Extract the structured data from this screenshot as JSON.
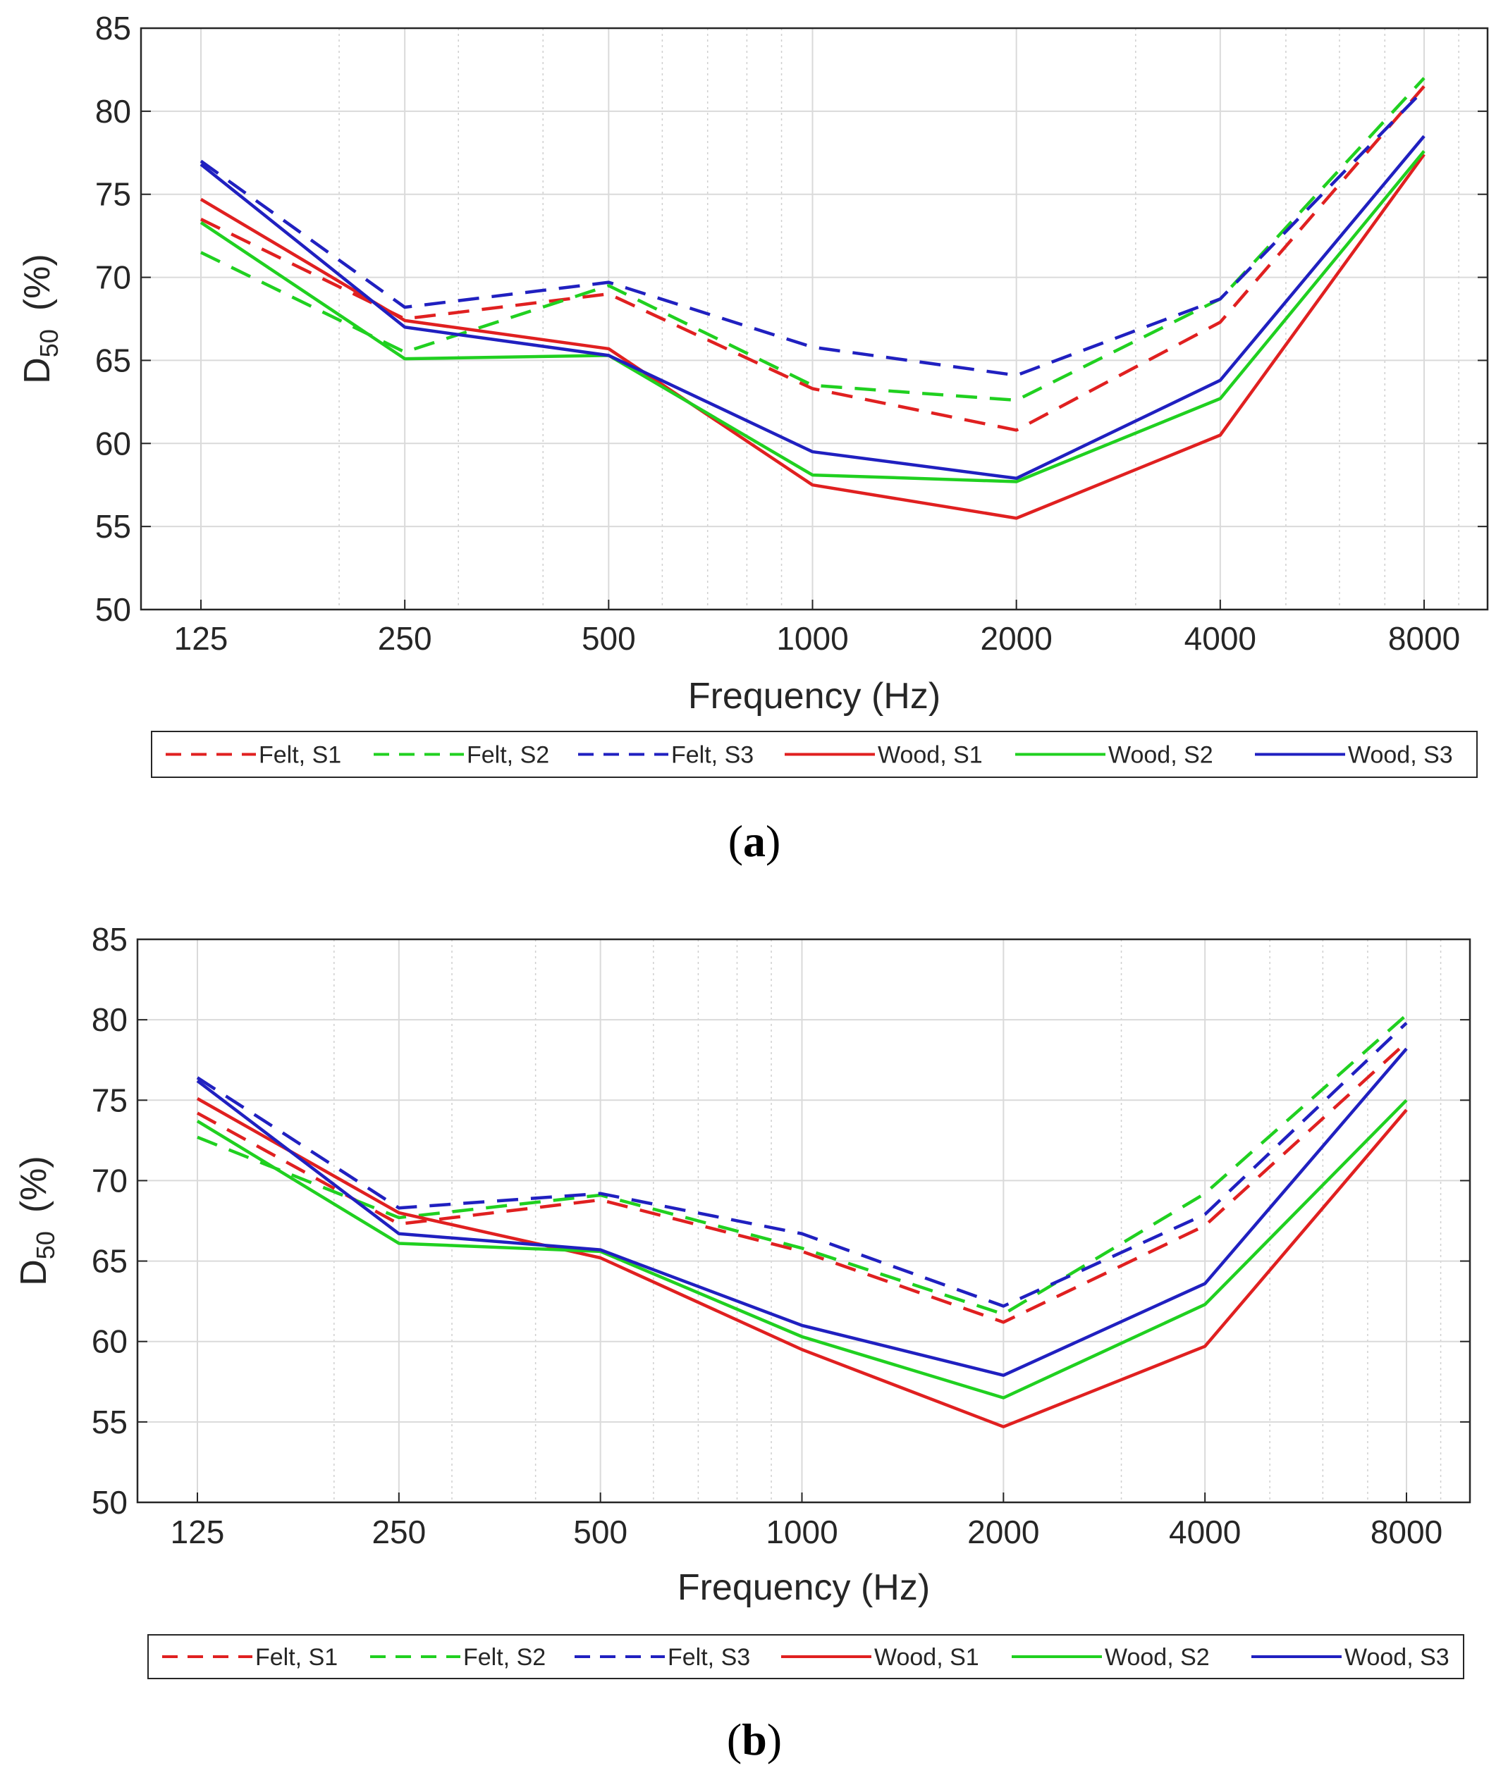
{
  "chart_data": [
    {
      "type": "line",
      "caption": "(a)",
      "xlabel": "Frequency (Hz)",
      "ylabel": "D",
      "ylabel_sub": "50",
      "ylabel_unit": "(%)",
      "x": [
        125,
        250,
        500,
        1000,
        2000,
        4000,
        8000
      ],
      "x_scale": "log2",
      "xtick_labels": [
        "125",
        "250",
        "500",
        "1000",
        "2000",
        "4000",
        "8000"
      ],
      "ylim": [
        50,
        85
      ],
      "yticks": [
        50,
        55,
        60,
        65,
        70,
        75,
        80,
        85
      ],
      "grid": true,
      "legend_position": "bottom",
      "series": [
        {
          "name": "Felt, S1",
          "color": "#e02020",
          "style": "dashed",
          "values": [
            73.5,
            67.5,
            69.0,
            63.3,
            60.8,
            67.3,
            81.5
          ]
        },
        {
          "name": "Felt, S2",
          "color": "#20d020",
          "style": "dashed",
          "values": [
            71.5,
            65.5,
            69.5,
            63.5,
            62.6,
            68.7,
            82.0
          ]
        },
        {
          "name": "Felt, S3",
          "color": "#2020c0",
          "style": "dashed",
          "values": [
            77.0,
            68.2,
            69.7,
            65.8,
            64.1,
            68.7,
            81.3
          ]
        },
        {
          "name": "Wood, S1",
          "color": "#e02020",
          "style": "solid",
          "values": [
            74.7,
            67.4,
            65.7,
            57.5,
            55.5,
            60.5,
            77.4
          ]
        },
        {
          "name": "Wood, S2",
          "color": "#20d020",
          "style": "solid",
          "values": [
            73.3,
            65.1,
            65.3,
            58.1,
            57.7,
            62.7,
            77.6
          ]
        },
        {
          "name": "Wood, S3",
          "color": "#2020c0",
          "style": "solid",
          "values": [
            76.8,
            67.0,
            65.3,
            59.5,
            57.9,
            63.8,
            78.5
          ]
        }
      ]
    },
    {
      "type": "line",
      "caption": "(b)",
      "xlabel": "Frequency (Hz)",
      "ylabel": "D",
      "ylabel_sub": "50",
      "ylabel_unit": "(%)",
      "x": [
        125,
        250,
        500,
        1000,
        2000,
        4000,
        8000
      ],
      "x_scale": "log2",
      "xtick_labels": [
        "125",
        "250",
        "500",
        "1000",
        "2000",
        "4000",
        "8000"
      ],
      "ylim": [
        50,
        85
      ],
      "yticks": [
        50,
        55,
        60,
        65,
        70,
        75,
        80,
        85
      ],
      "grid": true,
      "legend_position": "bottom",
      "series": [
        {
          "name": "Felt, S1",
          "color": "#e02020",
          "style": "dashed",
          "values": [
            74.2,
            67.3,
            68.8,
            65.6,
            61.2,
            67.2,
            78.6
          ]
        },
        {
          "name": "Felt, S2",
          "color": "#20d020",
          "style": "dashed",
          "values": [
            72.7,
            67.7,
            69.1,
            65.8,
            61.7,
            69.2,
            80.3
          ]
        },
        {
          "name": "Felt, S3",
          "color": "#2020c0",
          "style": "dashed",
          "values": [
            76.4,
            68.3,
            69.2,
            66.7,
            62.2,
            67.9,
            79.8
          ]
        },
        {
          "name": "Wood, S1",
          "color": "#e02020",
          "style": "solid",
          "values": [
            75.1,
            68.0,
            65.2,
            59.5,
            54.7,
            59.7,
            74.4
          ]
        },
        {
          "name": "Wood, S2",
          "color": "#20d020",
          "style": "solid",
          "values": [
            73.7,
            66.1,
            65.6,
            60.3,
            56.5,
            62.3,
            75.0
          ]
        },
        {
          "name": "Wood, S3",
          "color": "#2020c0",
          "style": "solid",
          "values": [
            76.2,
            66.7,
            65.7,
            61.0,
            57.9,
            63.6,
            78.2
          ]
        }
      ]
    }
  ]
}
